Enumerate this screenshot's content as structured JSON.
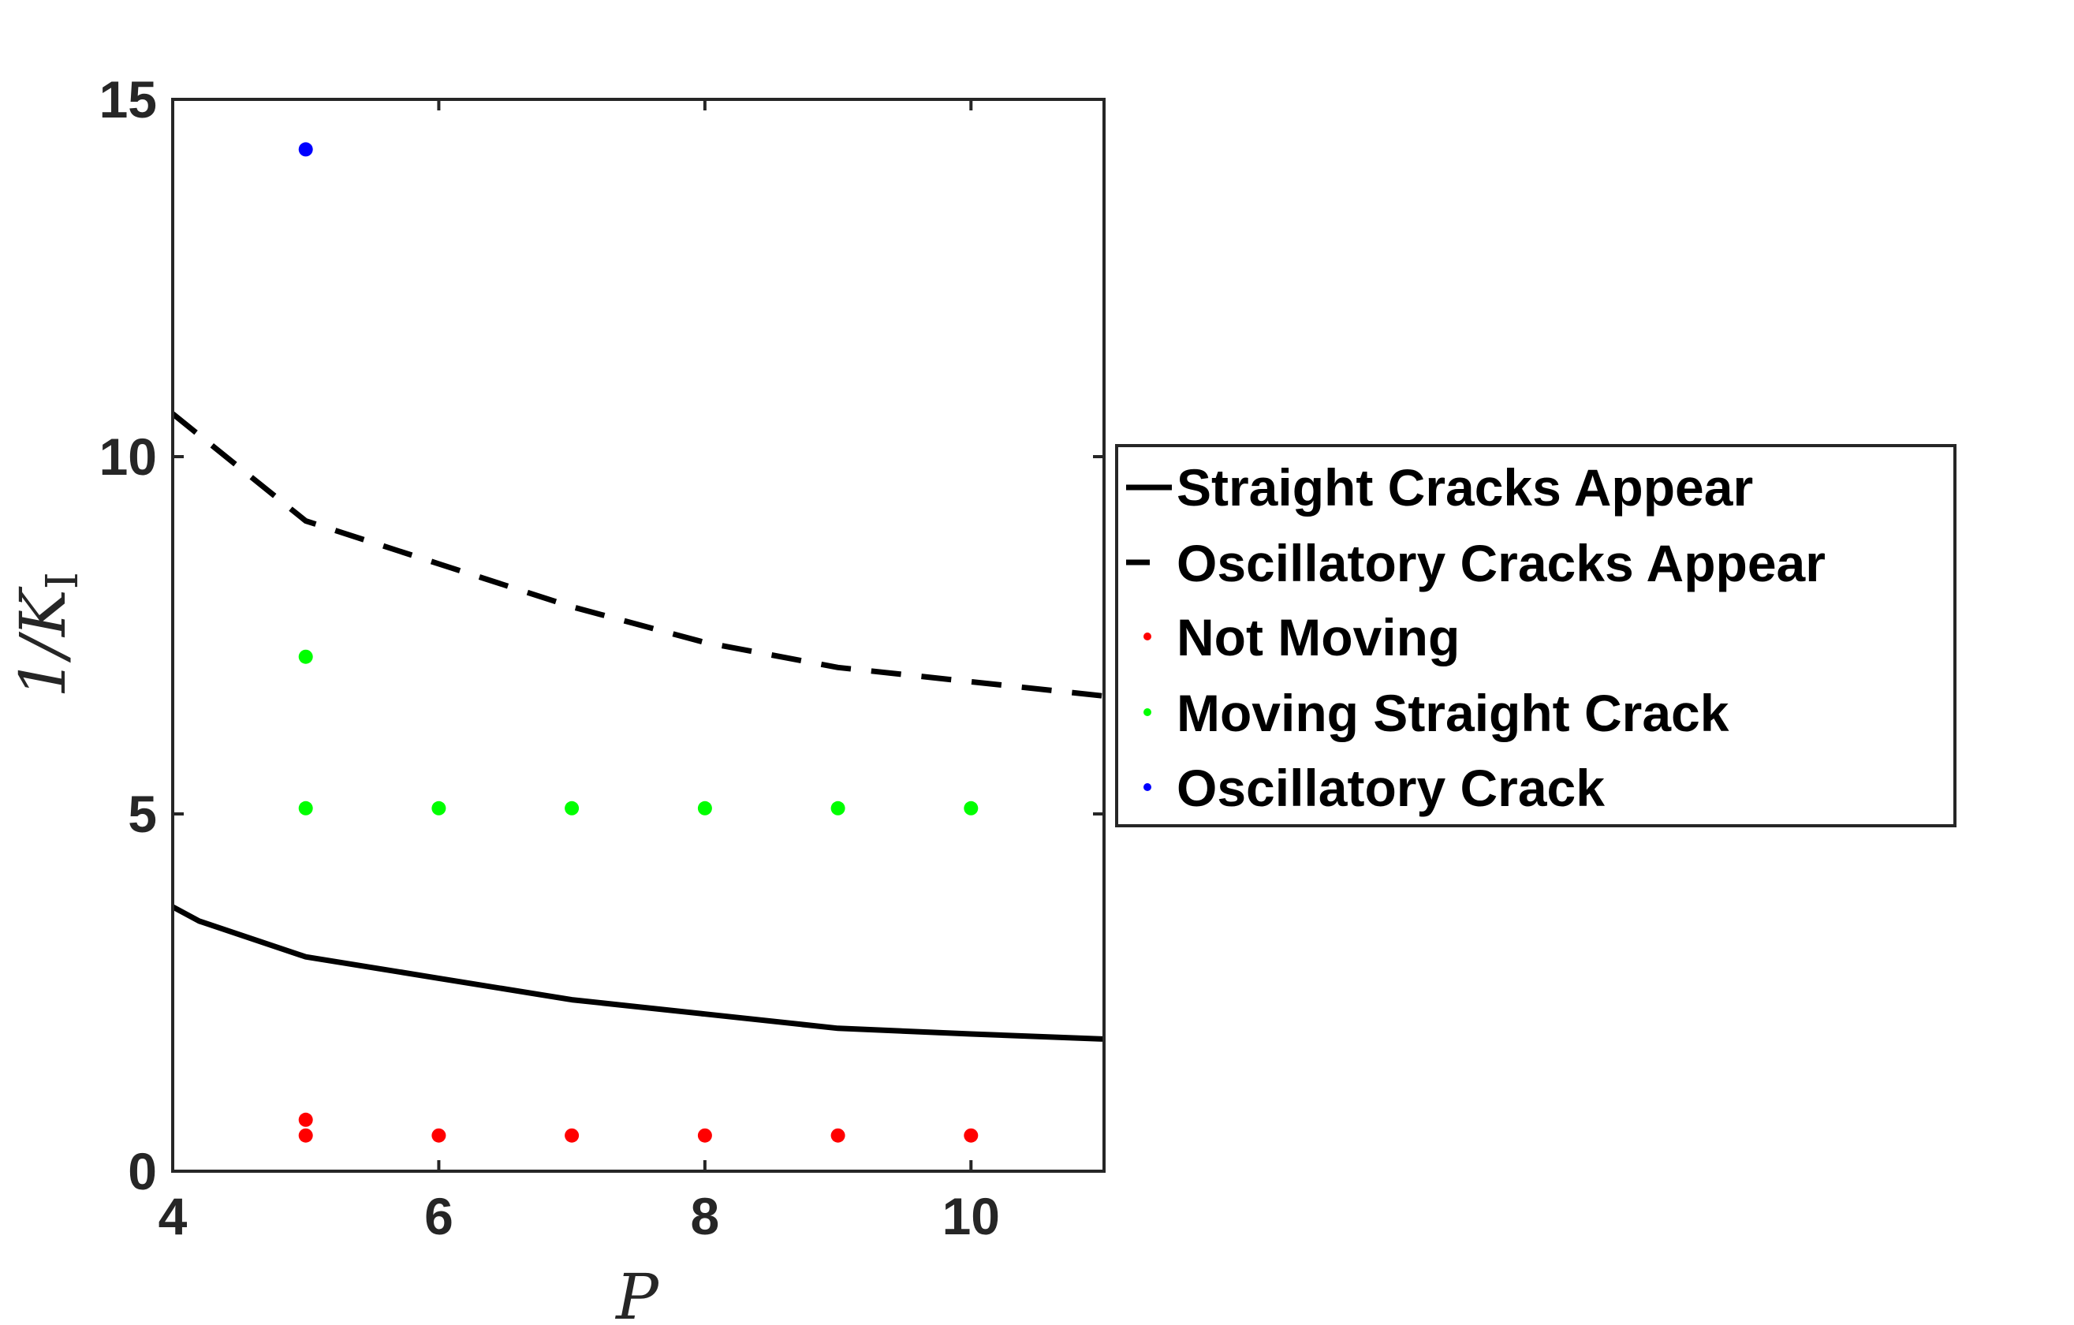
{
  "chart_data": {
    "type": "line",
    "xlabel": "P",
    "ylabel_main": "1/K",
    "ylabel_sub": "I",
    "xlim": [
      4,
      11
    ],
    "ylim": [
      0,
      15
    ],
    "xticks": [
      "4",
      "6",
      "8",
      "10"
    ],
    "yticks": [
      "0",
      "5",
      "10",
      "15"
    ],
    "grid": false,
    "legend_position": "right",
    "lines": [
      {
        "name": "Straight Cracks Appear",
        "style": "solid",
        "color": "#000000",
        "x": [
          4,
          4.2,
          5,
          6,
          7,
          8,
          9,
          10,
          11
        ],
        "y": [
          3.7,
          3.5,
          3.0,
          2.7,
          2.4,
          2.2,
          2.0,
          1.92,
          1.85
        ]
      },
      {
        "name": "Oscillatory Cracks Appear",
        "style": "dashed",
        "color": "#000000",
        "x": [
          4,
          4.2,
          5,
          6,
          7,
          8,
          9,
          10,
          11
        ],
        "y": [
          10.6,
          10.3,
          9.1,
          8.5,
          7.9,
          7.4,
          7.05,
          6.85,
          6.65
        ]
      }
    ],
    "scatter": [
      {
        "name": "Not Moving",
        "color": "#ff0000",
        "points": [
          [
            5,
            0.72
          ],
          [
            5,
            0.5
          ],
          [
            6,
            0.5
          ],
          [
            7,
            0.5
          ],
          [
            8,
            0.5
          ],
          [
            9,
            0.5
          ],
          [
            10,
            0.5
          ]
        ]
      },
      {
        "name": "Moving Straight Crack",
        "color": "#00ff00",
        "points": [
          [
            5,
            7.2
          ],
          [
            5,
            5.08
          ],
          [
            6,
            5.08
          ],
          [
            7,
            5.08
          ],
          [
            8,
            5.08
          ],
          [
            9,
            5.08
          ],
          [
            10,
            5.08
          ]
        ]
      },
      {
        "name": "Oscillatory Crack",
        "color": "#0000ff",
        "points": [
          [
            5,
            14.3
          ]
        ]
      }
    ]
  }
}
